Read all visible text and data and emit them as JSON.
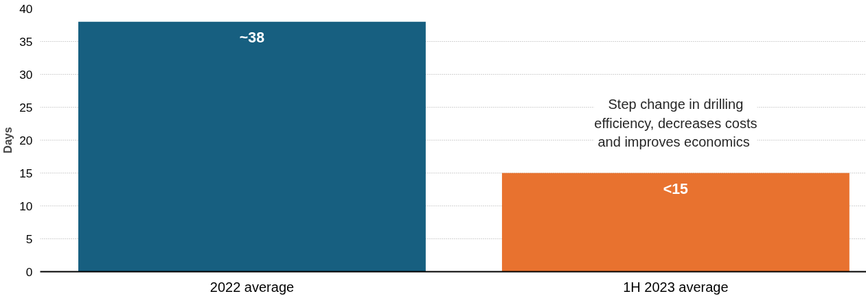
{
  "chart_data": {
    "type": "bar",
    "ylabel": "Days",
    "categories": [
      "2022 average",
      "1H 2023 average"
    ],
    "values": [
      38,
      15
    ],
    "colors": [
      "#175f80",
      "#e8722f"
    ],
    "value_labels": [
      "~38",
      "<15"
    ],
    "ylim": [
      0,
      40
    ],
    "yticks": [
      0,
      5,
      10,
      15,
      20,
      25,
      30,
      35,
      40
    ],
    "grid": "y",
    "annotations": [
      "Step change in drilling efficiency, decreases costs and  improves economics"
    ]
  }
}
